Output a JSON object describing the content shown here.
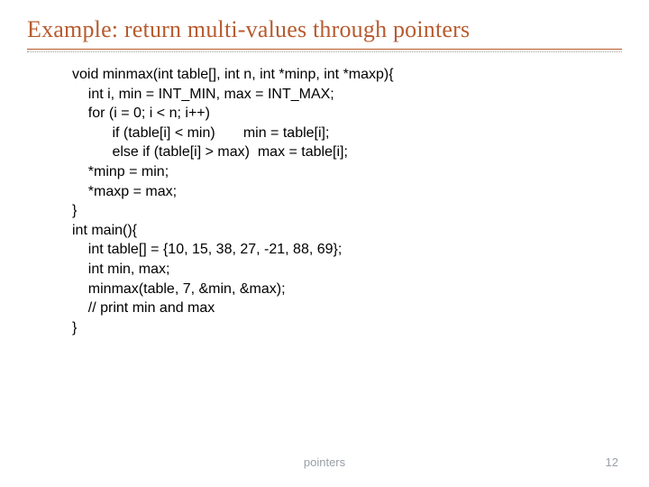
{
  "title": {
    "text": "Example: return multi-values through pointers",
    "color": "#b75b2f",
    "fontsize": 26
  },
  "underline_color": "#b75b2f",
  "dotted_color": "#9aa0a6",
  "code": {
    "fontsize": 16,
    "color": "#000000",
    "lines": [
      "void minmax(int table[], int n, int *minp, int *maxp){",
      "    int i, min = INT_MIN, max = INT_MAX;",
      "    for (i = 0; i < n; i++)",
      "          if (table[i] < min)       min = table[i];",
      "          else if (table[i] > max)  max = table[i];",
      "    *minp = min;",
      "    *maxp = max;",
      "}",
      "int main(){",
      "    int table[] = {10, 15, 38, 27, -21, 88, 69};",
      "    int min, max;",
      "    minmax(table, 7, &min, &max);",
      "    // print min and max",
      "}"
    ]
  },
  "footer": {
    "label": "pointers",
    "page": "12",
    "color": "#9aa0a6",
    "fontsize": 13
  }
}
